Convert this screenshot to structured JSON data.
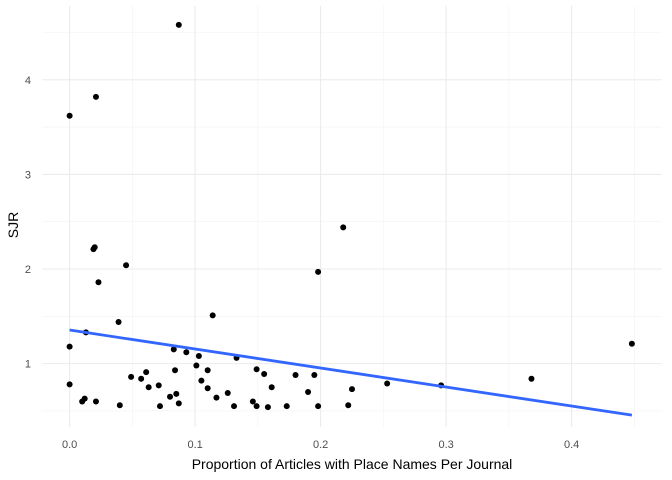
{
  "chart_data": {
    "type": "scatter",
    "title": "",
    "xlabel": "Proportion of Articles with Place Names Per Journal",
    "ylabel": "SJR",
    "xlim": [
      -0.022,
      0.472
    ],
    "ylim": [
      0.33,
      4.78
    ],
    "x_ticks": [
      0.0,
      0.1,
      0.2,
      0.3,
      0.4
    ],
    "x_tick_labels": [
      "0.0",
      "0.1",
      "0.2",
      "0.3",
      "0.4"
    ],
    "y_ticks": [
      1,
      2,
      3,
      4
    ],
    "y_tick_labels": [
      "1",
      "2",
      "3",
      "4"
    ],
    "grid": true,
    "point_color": "#000000",
    "trend_color": "#3366ff",
    "trend_line": {
      "x": [
        0.0,
        0.448
      ],
      "y": [
        1.355,
        0.455
      ]
    },
    "points": [
      [
        0.087,
        4.58
      ],
      [
        0.0,
        3.62
      ],
      [
        0.021,
        3.82
      ],
      [
        0.019,
        2.21
      ],
      [
        0.02,
        2.23
      ],
      [
        0.218,
        2.44
      ],
      [
        0.045,
        2.04
      ],
      [
        0.198,
        1.97
      ],
      [
        0.023,
        1.86
      ],
      [
        0.114,
        1.51
      ],
      [
        0.039,
        1.44
      ],
      [
        0.013,
        1.33
      ],
      [
        0.0,
        1.18
      ],
      [
        0.448,
        1.21
      ],
      [
        0.083,
        1.15
      ],
      [
        0.093,
        1.12
      ],
      [
        0.103,
        1.08
      ],
      [
        0.133,
        1.06
      ],
      [
        0.101,
        0.98
      ],
      [
        0.084,
        0.93
      ],
      [
        0.11,
        0.93
      ],
      [
        0.149,
        0.94
      ],
      [
        0.061,
        0.91
      ],
      [
        0.155,
        0.89
      ],
      [
        0.18,
        0.88
      ],
      [
        0.195,
        0.88
      ],
      [
        0.049,
        0.86
      ],
      [
        0.057,
        0.84
      ],
      [
        0.368,
        0.84
      ],
      [
        0.105,
        0.82
      ],
      [
        0.0,
        0.78
      ],
      [
        0.253,
        0.79
      ],
      [
        0.071,
        0.77
      ],
      [
        0.296,
        0.77
      ],
      [
        0.063,
        0.75
      ],
      [
        0.161,
        0.75
      ],
      [
        0.11,
        0.74
      ],
      [
        0.225,
        0.73
      ],
      [
        0.19,
        0.7
      ],
      [
        0.126,
        0.69
      ],
      [
        0.085,
        0.68
      ],
      [
        0.08,
        0.65
      ],
      [
        0.117,
        0.64
      ],
      [
        0.012,
        0.63
      ],
      [
        0.01,
        0.6
      ],
      [
        0.021,
        0.6
      ],
      [
        0.146,
        0.6
      ],
      [
        0.087,
        0.58
      ],
      [
        0.04,
        0.56
      ],
      [
        0.072,
        0.55
      ],
      [
        0.131,
        0.55
      ],
      [
        0.149,
        0.55
      ],
      [
        0.158,
        0.54
      ],
      [
        0.173,
        0.55
      ],
      [
        0.198,
        0.55
      ],
      [
        0.222,
        0.56
      ]
    ]
  }
}
